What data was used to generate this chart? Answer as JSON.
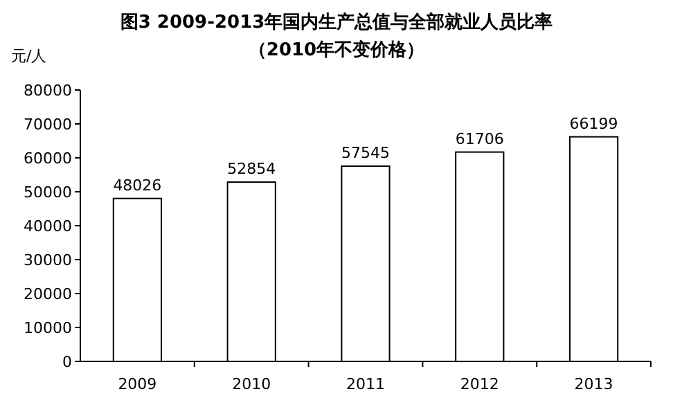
{
  "chart_data": {
    "type": "bar",
    "title": "图3   2009-2013年国内生产总值与全部就业人员比率",
    "subtitle": "（2010年不变价格）",
    "ylabel": "元/人",
    "categories": [
      "2009",
      "2010",
      "2011",
      "2012",
      "2013"
    ],
    "values": [
      48026,
      52854,
      57545,
      61706,
      66199
    ],
    "color": "#ffffff",
    "ylim": [
      0,
      80000
    ],
    "yticks": [
      0,
      10000,
      20000,
      30000,
      40000,
      50000,
      60000,
      70000,
      80000
    ],
    "data_labels": true
  }
}
